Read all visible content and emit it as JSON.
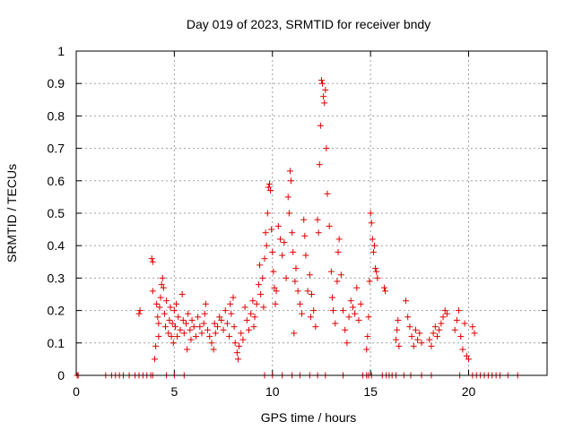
{
  "chart_data": {
    "type": "scatter",
    "title": "Day 019 of 2023, SRMTID for receiver bndy",
    "xlabel": "GPS time / hours",
    "ylabel": "SRMTID / TECUs",
    "xlim": [
      0,
      24
    ],
    "ylim": [
      0,
      1
    ],
    "xticks": [
      "0",
      "5",
      "10",
      "15",
      "20"
    ],
    "yticks": [
      "0",
      "0.1",
      "0.2",
      "0.3",
      "0.4",
      "0.5",
      "0.6",
      "0.7",
      "0.8",
      "0.9",
      "1"
    ],
    "grid": true,
    "marker": "plus",
    "color": "#e00000",
    "series": [
      {
        "name": "SRMTID",
        "points": [
          [
            0.05,
            0
          ],
          [
            0.1,
            0
          ],
          [
            1.5,
            0
          ],
          [
            1.8,
            0
          ],
          [
            2.0,
            0
          ],
          [
            2.2,
            0
          ],
          [
            2.4,
            0
          ],
          [
            2.7,
            0
          ],
          [
            3.0,
            0
          ],
          [
            3.2,
            0
          ],
          [
            3.4,
            0
          ],
          [
            3.6,
            0
          ],
          [
            3.8,
            0
          ],
          [
            3.9,
            0
          ],
          [
            3.2,
            0.19
          ],
          [
            3.25,
            0.2
          ],
          [
            3.85,
            0.36
          ],
          [
            3.9,
            0.35
          ],
          [
            3.9,
            0.26
          ],
          [
            4.0,
            0.05
          ],
          [
            4.05,
            0.09
          ],
          [
            4.1,
            0.22
          ],
          [
            4.15,
            0.18
          ],
          [
            4.2,
            0.16
          ],
          [
            4.2,
            0.12
          ],
          [
            4.25,
            0.21
          ],
          [
            4.3,
            0.24
          ],
          [
            4.35,
            0.28
          ],
          [
            4.4,
            0.3
          ],
          [
            4.45,
            0.27
          ],
          [
            4.5,
            0.19
          ],
          [
            4.55,
            0.15
          ],
          [
            4.6,
            0.23
          ],
          [
            4.7,
            0.13
          ],
          [
            4.75,
            0.17
          ],
          [
            4.8,
            0.21
          ],
          [
            4.85,
            0.12
          ],
          [
            4.9,
            0.16
          ],
          [
            4.95,
            0.1
          ],
          [
            5.0,
            0.2
          ],
          [
            5.05,
            0.15
          ],
          [
            5.1,
            0.22
          ],
          [
            5.15,
            0.12
          ],
          [
            5.2,
            0.18
          ],
          [
            5.3,
            0.14
          ],
          [
            5.4,
            0.25
          ],
          [
            5.45,
            0.17
          ],
          [
            5.5,
            0.13
          ],
          [
            5.6,
            0.16
          ],
          [
            5.65,
            0.08
          ],
          [
            5.7,
            0.19
          ],
          [
            5.8,
            0.14
          ],
          [
            5.85,
            0.11
          ],
          [
            5.9,
            0.17
          ],
          [
            6.0,
            0.15
          ],
          [
            6.1,
            0.12
          ],
          [
            6.2,
            0.18
          ],
          [
            6.3,
            0.15
          ],
          [
            6.4,
            0.13
          ],
          [
            6.5,
            0.16
          ],
          [
            6.55,
            0.19
          ],
          [
            6.6,
            0.22
          ],
          [
            6.7,
            0.14
          ],
          [
            6.8,
            0.12
          ],
          [
            6.9,
            0.1
          ],
          [
            7.0,
            0.08
          ],
          [
            7.05,
            0.16
          ],
          [
            7.1,
            0.13
          ],
          [
            7.2,
            0.15
          ],
          [
            7.3,
            0.18
          ],
          [
            7.4,
            0.17
          ],
          [
            7.5,
            0.14
          ],
          [
            7.6,
            0.2
          ],
          [
            7.7,
            0.16
          ],
          [
            7.8,
            0.12
          ],
          [
            7.85,
            0.22
          ],
          [
            7.9,
            0.19
          ],
          [
            8.0,
            0.24
          ],
          [
            8.05,
            0.15
          ],
          [
            8.1,
            0.1
          ],
          [
            8.2,
            0.07
          ],
          [
            8.25,
            0.05
          ],
          [
            8.3,
            0.09
          ],
          [
            8.4,
            0.13
          ],
          [
            8.5,
            0.11
          ],
          [
            8.6,
            0.21
          ],
          [
            8.7,
            0.17
          ],
          [
            8.8,
            0.14
          ],
          [
            8.9,
            0.19
          ],
          [
            9.0,
            0.23
          ],
          [
            9.05,
            0.15
          ],
          [
            9.1,
            0.18
          ],
          [
            9.2,
            0.22
          ],
          [
            9.3,
            0.28
          ],
          [
            9.35,
            0.34
          ],
          [
            9.4,
            0.25
          ],
          [
            9.5,
            0.3
          ],
          [
            9.55,
            0.21
          ],
          [
            9.6,
            0.36
          ],
          [
            9.65,
            0.44
          ],
          [
            9.7,
            0.4
          ],
          [
            9.75,
            0.5
          ],
          [
            9.8,
            0.58
          ],
          [
            9.85,
            0.59
          ],
          [
            9.9,
            0.57
          ],
          [
            9.95,
            0.45
          ],
          [
            10.0,
            0.38
          ],
          [
            10.05,
            0.32
          ],
          [
            10.1,
            0.27
          ],
          [
            10.15,
            0.22
          ],
          [
            10.2,
            0.26
          ],
          [
            10.3,
            0.46
          ],
          [
            10.4,
            0.42
          ],
          [
            10.5,
            0.37
          ],
          [
            10.6,
            0.41
          ],
          [
            10.7,
            0.3
          ],
          [
            10.8,
            0.55
          ],
          [
            10.85,
            0.5
          ],
          [
            10.9,
            0.63
          ],
          [
            10.95,
            0.6
          ],
          [
            11.0,
            0.44
          ],
          [
            11.05,
            0.38
          ],
          [
            11.1,
            0.13
          ],
          [
            11.15,
            0.29
          ],
          [
            11.2,
            0.33
          ],
          [
            11.3,
            0.26
          ],
          [
            11.4,
            0.22
          ],
          [
            11.5,
            0.19
          ],
          [
            11.6,
            0.48
          ],
          [
            11.65,
            0.43
          ],
          [
            11.7,
            0.37
          ],
          [
            11.8,
            0.26
          ],
          [
            11.9,
            0.31
          ],
          [
            11.95,
            0.18
          ],
          [
            12.0,
            0.25
          ],
          [
            12.1,
            0.2
          ],
          [
            12.2,
            0.15
          ],
          [
            12.3,
            0.48
          ],
          [
            12.35,
            0.44
          ],
          [
            12.4,
            0.65
          ],
          [
            12.45,
            0.77
          ],
          [
            12.5,
            0.91
          ],
          [
            12.55,
            0.9
          ],
          [
            12.6,
            0.86
          ],
          [
            12.65,
            0.84
          ],
          [
            12.7,
            0.88
          ],
          [
            12.75,
            0.7
          ],
          [
            12.8,
            0.56
          ],
          [
            12.9,
            0.46
          ],
          [
            13.0,
            0.32
          ],
          [
            13.05,
            0.24
          ],
          [
            13.1,
            0.2
          ],
          [
            13.2,
            0.16
          ],
          [
            13.3,
            0.29
          ],
          [
            13.35,
            0.38
          ],
          [
            13.4,
            0.42
          ],
          [
            13.5,
            0.31
          ],
          [
            13.6,
            0.2
          ],
          [
            13.7,
            0.14
          ],
          [
            13.8,
            0.1
          ],
          [
            13.9,
            0.18
          ],
          [
            14.0,
            0.23
          ],
          [
            14.1,
            0.21
          ],
          [
            14.2,
            0.19
          ],
          [
            14.3,
            0.27
          ],
          [
            14.4,
            0.17
          ],
          [
            14.5,
            0.22
          ],
          [
            14.8,
            0.08
          ],
          [
            14.85,
            0.12
          ],
          [
            14.9,
            0.18
          ],
          [
            14.95,
            0.29
          ],
          [
            15.0,
            0.5
          ],
          [
            15.05,
            0.47
          ],
          [
            15.1,
            0.42
          ],
          [
            15.15,
            0.38
          ],
          [
            15.2,
            0.4
          ],
          [
            15.25,
            0.33
          ],
          [
            15.3,
            0.32
          ],
          [
            15.35,
            0.3
          ],
          [
            15.7,
            0.27
          ],
          [
            15.75,
            0.26
          ],
          [
            16.3,
            0.11
          ],
          [
            16.35,
            0.14
          ],
          [
            16.4,
            0.17
          ],
          [
            16.45,
            0.09
          ],
          [
            16.8,
            0.23
          ],
          [
            16.9,
            0.18
          ],
          [
            17.0,
            0.15
          ],
          [
            17.1,
            0.12
          ],
          [
            17.2,
            0.09
          ],
          [
            17.3,
            0.14
          ],
          [
            17.4,
            0.11
          ],
          [
            17.5,
            0.13
          ],
          [
            17.6,
            0.1
          ],
          [
            18.0,
            0.11
          ],
          [
            18.1,
            0.09
          ],
          [
            18.2,
            0.13
          ],
          [
            18.3,
            0.15
          ],
          [
            18.4,
            0.12
          ],
          [
            18.5,
            0.14
          ],
          [
            18.6,
            0.16
          ],
          [
            18.7,
            0.18
          ],
          [
            18.8,
            0.2
          ],
          [
            18.9,
            0.19
          ],
          [
            19.3,
            0.14
          ],
          [
            19.4,
            0.17
          ],
          [
            19.5,
            0.2
          ],
          [
            19.6,
            0.12
          ],
          [
            19.7,
            0.08
          ],
          [
            19.8,
            0.16
          ],
          [
            19.9,
            0.06
          ],
          [
            20.0,
            0.05
          ],
          [
            20.2,
            0.15
          ],
          [
            20.3,
            0.13
          ],
          [
            4.6,
            0
          ],
          [
            5.0,
            0
          ],
          [
            5.5,
            0
          ],
          [
            9.6,
            0
          ],
          [
            10.0,
            0
          ],
          [
            10.5,
            0
          ],
          [
            11.0,
            0
          ],
          [
            11.4,
            0
          ],
          [
            11.9,
            0
          ],
          [
            12.3,
            0
          ],
          [
            12.7,
            0
          ],
          [
            13.6,
            0
          ],
          [
            14.6,
            0
          ],
          [
            14.8,
            0
          ],
          [
            14.9,
            0
          ],
          [
            15.05,
            0
          ],
          [
            15.6,
            0
          ],
          [
            15.8,
            0
          ],
          [
            15.95,
            0
          ],
          [
            16.1,
            0
          ],
          [
            16.3,
            0
          ],
          [
            16.7,
            0
          ],
          [
            17.05,
            0
          ],
          [
            17.6,
            0
          ],
          [
            18.1,
            0
          ],
          [
            19.55,
            0
          ],
          [
            20.2,
            0
          ],
          [
            20.4,
            0
          ],
          [
            20.6,
            0
          ],
          [
            20.8,
            0
          ],
          [
            21.0,
            0
          ],
          [
            21.2,
            0
          ],
          [
            21.4,
            0
          ],
          [
            21.6,
            0
          ],
          [
            22.0,
            0
          ],
          [
            22.5,
            0
          ]
        ]
      }
    ]
  }
}
